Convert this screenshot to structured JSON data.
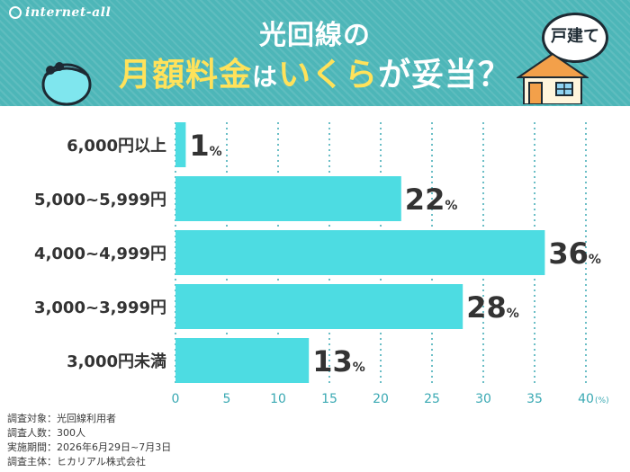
{
  "brand": {
    "name": "internet-all"
  },
  "header": {
    "title_line1": "光回線の",
    "title_part1": "月額料金",
    "title_part2": "は",
    "title_part3": "いくら",
    "title_part4": "が妥当？",
    "bubble": "戸建て",
    "colors": {
      "band": "#4db6b8",
      "accent": "#ffe25a"
    }
  },
  "chart_data": {
    "type": "bar",
    "orientation": "horizontal",
    "categories": [
      "6,000円以上",
      "5,000~5,999円",
      "4,000~4,999円",
      "3,000~3,999円",
      "3,000円未満"
    ],
    "values": [
      1,
      22,
      36,
      28,
      13
    ],
    "value_suffix": "%",
    "x_ticks": [
      0,
      5,
      10,
      15,
      20,
      25,
      30,
      35,
      40
    ],
    "x_unit": "(%)",
    "xlim": [
      0,
      40
    ],
    "grid": true,
    "colors": {
      "bar": "#4ddce2",
      "tick": "#3aa9b3",
      "label": "#333333"
    }
  },
  "footnotes": [
    "調査対象：光回線利用者",
    "調査人数：300人",
    "実施期間：2026年6月29日~7月3日",
    "調査主体：ヒカリアル株式会社"
  ]
}
